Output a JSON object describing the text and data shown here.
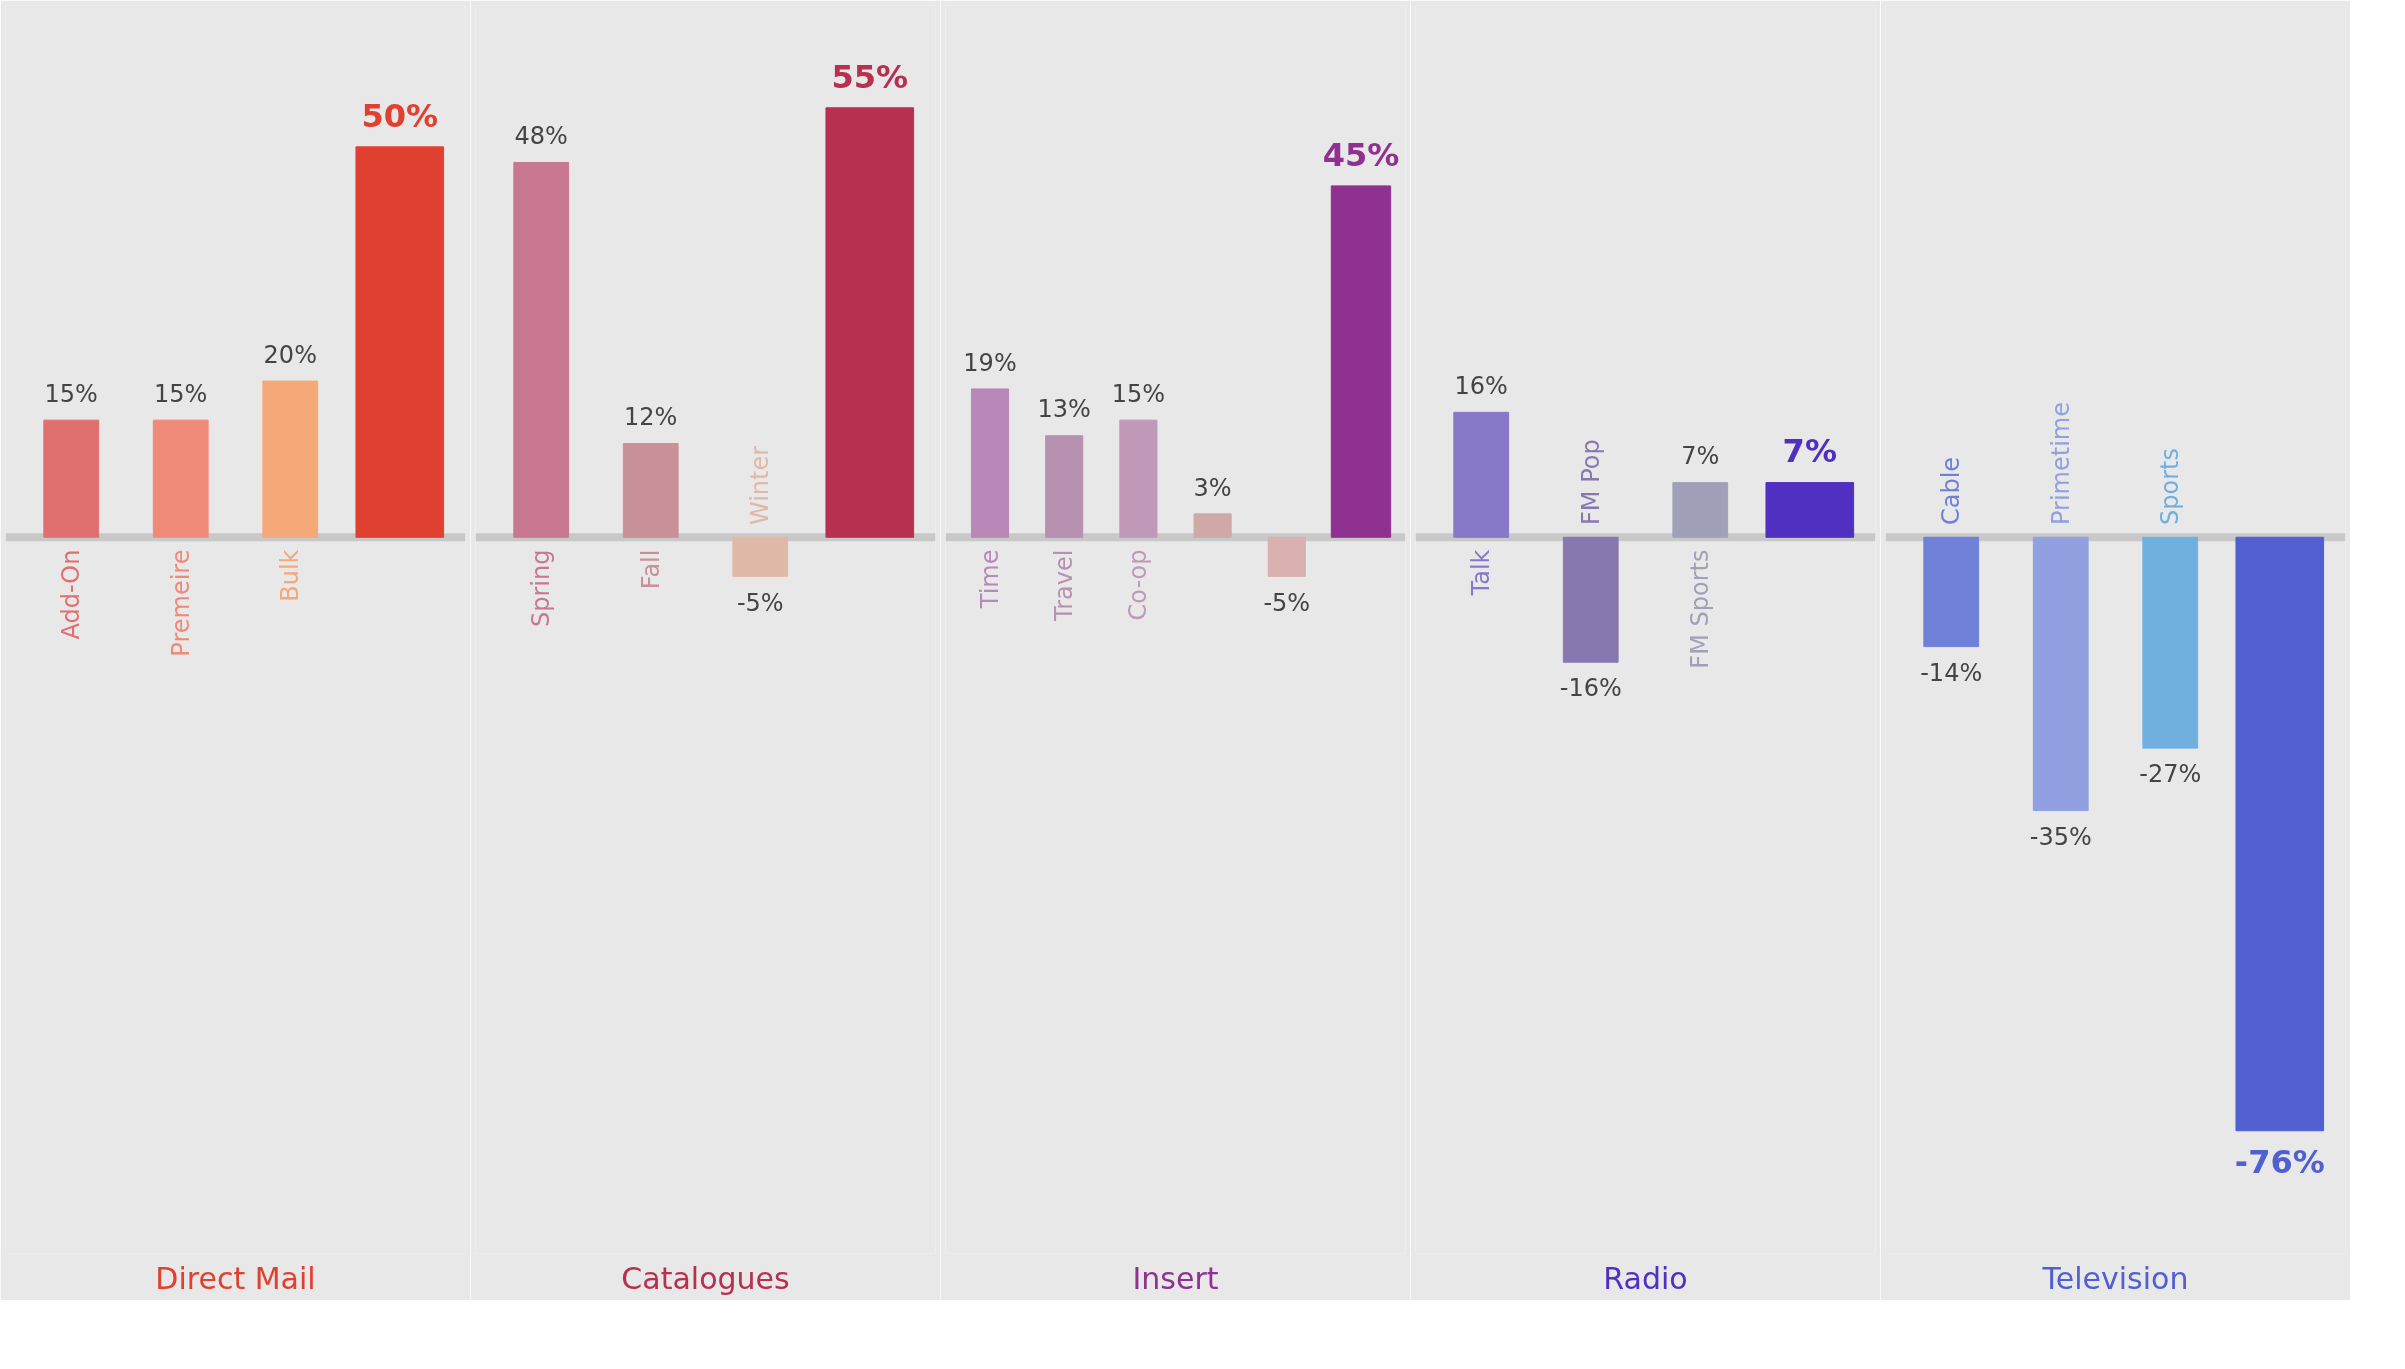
{
  "chart_data": [
    {
      "type": "bar",
      "title": "Direct Mail",
      "categories": [
        "Add-On",
        "Premeire",
        "Bulk",
        null
      ],
      "values": [
        15,
        15,
        20,
        50
      ],
      "colors": [
        "#e07070",
        "#f08a78",
        "#f5a878",
        "#e04030"
      ],
      "value_labels": [
        "15%",
        "15%",
        "20%",
        "50%"
      ]
    },
    {
      "type": "bar",
      "title": "Catalogues",
      "categories": [
        "Spring",
        "Fall",
        "Winter",
        null
      ],
      "values": [
        48,
        12,
        -5,
        55
      ],
      "colors": [
        "#c87890",
        "#c89098",
        "#e0b8a8",
        "#b83050"
      ],
      "value_labels": [
        "48%",
        "12%",
        "-5%",
        "55%"
      ]
    },
    {
      "type": "bar",
      "title": "Insert",
      "categories": [
        "Time",
        "Travel",
        "Co-op",
        null,
        null,
        null
      ],
      "values": [
        19,
        13,
        15,
        3,
        -5,
        45
      ],
      "colors": [
        "#b888b8",
        "#b890b0",
        "#c098b8",
        "#d0a8a8",
        "#d8b0b0",
        "#903090"
      ],
      "value_labels": [
        "19%",
        "13%",
        "15%",
        "3%",
        "-5%",
        "45%"
      ]
    },
    {
      "type": "bar",
      "title": "Radio",
      "categories": [
        "Talk",
        "FM Pop",
        "FM Sports",
        null
      ],
      "values": [
        16,
        -16,
        7,
        7
      ],
      "colors": [
        "#8878c8",
        "#8878b0",
        "#a0a0b8",
        "#5030c0"
      ],
      "value_labels": [
        "16%",
        "-16%",
        "7%",
        "7%"
      ]
    },
    {
      "type": "bar",
      "title": "Television",
      "categories": [
        "Cable",
        "Primetime",
        "Sports",
        null
      ],
      "values": [
        -14,
        -35,
        -27,
        -76
      ],
      "colors": [
        "#7080d8",
        "#90a0e0",
        "#70b0e0",
        "#5060d0"
      ],
      "value_labels": [
        "-14%",
        "-35%",
        "-27%",
        "-76%"
      ]
    }
  ]
}
